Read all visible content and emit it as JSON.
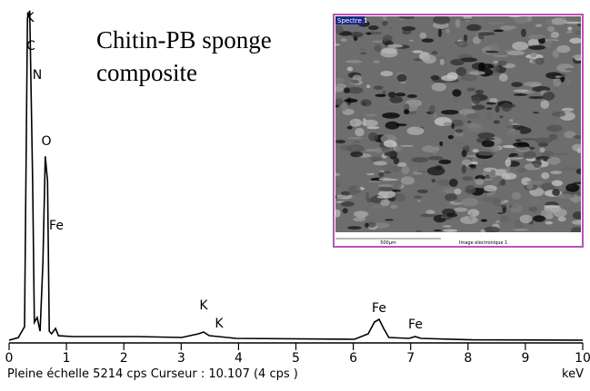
{
  "chart_data": {
    "type": "line",
    "title": "Chitin-PB sponge composite",
    "x": [
      0,
      0.16,
      0.27,
      0.32,
      0.36,
      0.41,
      0.44,
      0.49,
      0.54,
      0.59,
      0.63,
      0.67,
      0.7,
      0.74,
      0.81,
      0.86,
      1.11,
      2.22,
      3.01,
      3.3,
      3.39,
      3.49,
      3.96,
      6.02,
      6.26,
      6.37,
      6.45,
      6.53,
      6.62,
      6.97,
      7.08,
      7.18,
      8.08,
      10
    ],
    "series": [
      {
        "color": "#000000",
        "values": [
          0,
          40,
          210,
          5040,
          5160,
          2490,
          280,
          355,
          140,
          1210,
          2880,
          2490,
          140,
          100,
          185,
          70,
          57,
          57,
          43,
          100,
          128,
          71,
          28,
          14,
          100,
          284,
          327,
          185,
          43,
          28,
          57,
          28,
          5,
          0
        ]
      }
    ],
    "xlim": [
      0,
      10
    ],
    "xticks": [
      0,
      1,
      2,
      3,
      4,
      5,
      6,
      7,
      8,
      9,
      10
    ],
    "ylim": [
      0,
      5214
    ],
    "annotations": [
      "K",
      "C",
      "N",
      "O",
      "Fe",
      "K",
      "K",
      "Fe",
      "Fe"
    ],
    "footer": "Pleine échelle 5214 cps  Curseur : 10.107  (4 cps )",
    "x_unit": "keV",
    "inset": {
      "label": "Spectre 1",
      "scale": "500µm",
      "caption": "Image électronique 1"
    }
  }
}
